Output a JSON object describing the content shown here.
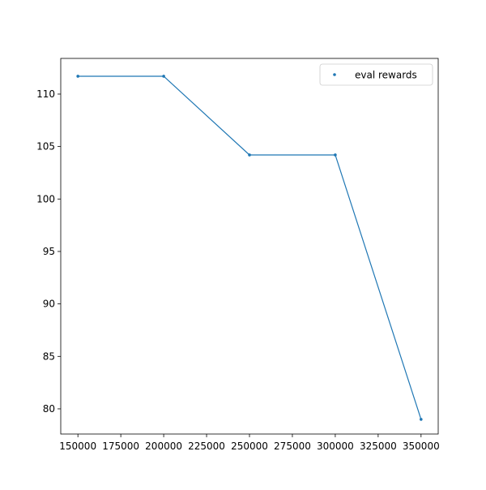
{
  "chart_data": {
    "type": "line",
    "title": "",
    "xlabel": "",
    "ylabel": "",
    "xlim": [
      140000,
      360000
    ],
    "ylim": [
      77.6,
      113.4
    ],
    "xticks": [
      150000,
      175000,
      200000,
      225000,
      250000,
      275000,
      300000,
      325000,
      350000
    ],
    "xtick_labels": [
      "150000",
      "175000",
      "200000",
      "225000",
      "250000",
      "275000",
      "300000",
      "325000",
      "350000"
    ],
    "yticks": [
      80,
      85,
      90,
      95,
      100,
      105,
      110
    ],
    "ytick_labels": [
      "80",
      "85",
      "90",
      "95",
      "100",
      "105",
      "110"
    ],
    "grid": false,
    "legend": {
      "position": "top-right"
    },
    "series": [
      {
        "name": "eval rewards",
        "color": "#1f77b4",
        "x": [
          150000,
          200000,
          250000,
          300000,
          350000
        ],
        "y": [
          111.7,
          111.7,
          104.2,
          104.2,
          79.0
        ]
      }
    ]
  }
}
